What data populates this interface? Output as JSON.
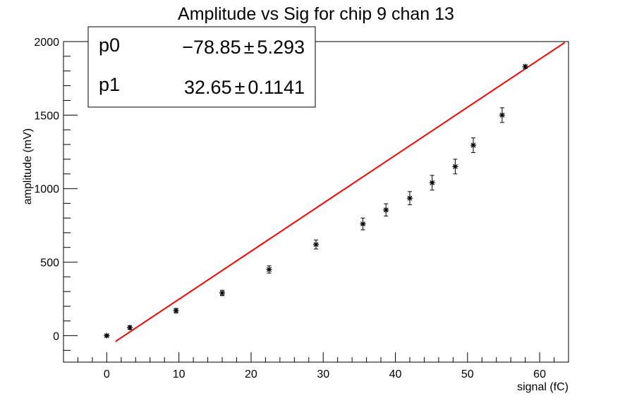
{
  "chart_data": {
    "type": "scatter",
    "title": "Amplitude vs Sig for chip 9 chan 13",
    "xlabel": "signal (fC)",
    "ylabel": "amplitude (mV)",
    "xlim": [
      -6,
      64
    ],
    "ylim": [
      -180,
      2000
    ],
    "x_ticks": [
      0,
      10,
      20,
      30,
      40,
      50,
      60
    ],
    "y_ticks": [
      0,
      500,
      1000,
      1500,
      2000
    ],
    "grid": false,
    "series": [
      {
        "color": "#000000",
        "marker": "asterisk",
        "x": [
          0,
          3.2,
          9.6,
          16.0,
          22.5,
          29.0,
          35.5,
          38.7,
          42.0,
          45.1,
          48.3,
          50.8,
          54.8,
          58.0
        ],
        "y": [
          0,
          55,
          170,
          290,
          450,
          620,
          760,
          855,
          935,
          1040,
          1150,
          1295,
          1500,
          1830
        ],
        "yerr": [
          8,
          12,
          15,
          18,
          25,
          30,
          40,
          42,
          45,
          50,
          50,
          50,
          50,
          10
        ]
      }
    ],
    "fit": {
      "color": "#ff0000",
      "x_range": [
        1.2,
        63.5
      ],
      "p0": -78.85,
      "p1": 32.65
    },
    "stats_box": {
      "rows": [
        {
          "name": "p0",
          "value": "−78.85",
          "pm": "±",
          "error": "5.293"
        },
        {
          "name": "p1",
          "value": "32.65",
          "pm": "±",
          "error": "0.1141"
        }
      ]
    }
  }
}
